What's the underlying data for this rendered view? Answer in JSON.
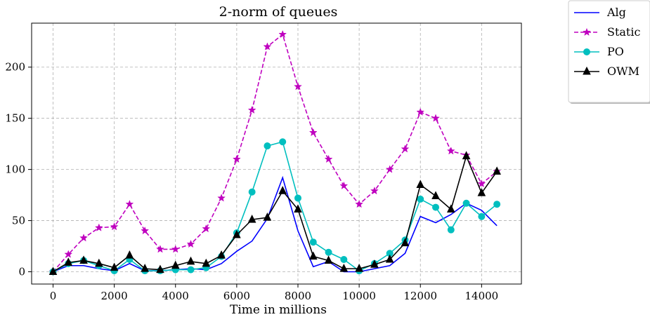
{
  "chart_data": {
    "type": "line",
    "title": "2-norm of queues",
    "xlabel": "Time in millions",
    "ylabel": "",
    "xlim": [
      -700,
      15300
    ],
    "ylim": [
      -12,
      243
    ],
    "xticks": [
      0,
      2000,
      4000,
      6000,
      8000,
      10000,
      12000,
      14000
    ],
    "yticks": [
      0,
      50,
      100,
      150,
      200
    ],
    "grid": true,
    "legend_position": "outside-top-right",
    "x": [
      0,
      500,
      1000,
      1500,
      2000,
      2500,
      3000,
      3500,
      4000,
      4500,
      5000,
      5500,
      6000,
      6500,
      7000,
      7500,
      8000,
      8500,
      9000,
      9500,
      10000,
      10500,
      11000,
      11500,
      12000,
      12500,
      13000,
      13500,
      14000,
      14500
    ],
    "series": [
      {
        "name": "Alg",
        "color": "#0000ff",
        "dash": "solid",
        "marker": "none",
        "values": [
          0,
          6,
          6,
          3,
          1,
          8,
          1,
          1,
          2,
          3,
          2,
          8,
          20,
          30,
          52,
          92,
          40,
          5,
          10,
          0,
          0,
          3,
          6,
          18,
          54,
          48,
          56,
          67,
          60,
          45
        ]
      },
      {
        "name": "Static",
        "color": "#bf00bf",
        "dash": "dashed",
        "marker": "star",
        "values": [
          0,
          17,
          33,
          43,
          44,
          66,
          40,
          22,
          22,
          27,
          42,
          72,
          110,
          158,
          220,
          232,
          181,
          136,
          110,
          84,
          66,
          79,
          100,
          120,
          156,
          150,
          118,
          114,
          86,
          98
        ]
      },
      {
        "name": "PO",
        "color": "#00bfbf",
        "dash": "solid",
        "marker": "circle",
        "values": [
          0,
          8,
          11,
          6,
          1,
          12,
          1,
          1,
          2,
          2,
          4,
          15,
          38,
          78,
          123,
          127,
          72,
          29,
          19,
          12,
          1,
          8,
          18,
          31,
          71,
          63,
          41,
          67,
          54,
          66
        ]
      },
      {
        "name": "OWM",
        "color": "#000000",
        "dash": "solid",
        "marker": "triangle",
        "values": [
          0,
          9,
          11,
          8,
          4,
          16,
          3,
          2,
          6,
          10,
          8,
          16,
          36,
          51,
          53,
          79,
          61,
          15,
          11,
          3,
          3,
          7,
          12,
          28,
          85,
          74,
          61,
          113,
          77,
          98
        ]
      }
    ]
  }
}
